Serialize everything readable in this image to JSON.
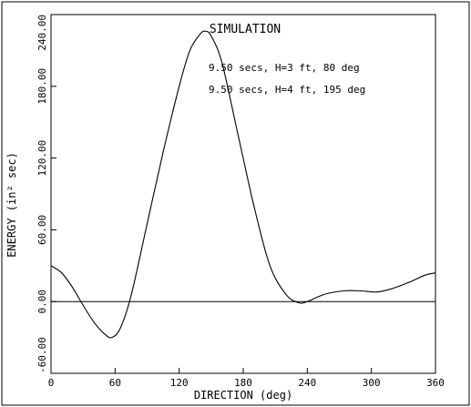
{
  "chart_data": {
    "type": "line",
    "title": "SIMULATION",
    "xlabel": "DIRECTION (deg)",
    "ylabel": "ENERGY (in² sec)",
    "xlim": [
      0,
      360
    ],
    "ylim": [
      -60,
      240
    ],
    "x_ticks": [
      0,
      60,
      120,
      180,
      240,
      300,
      360
    ],
    "x_tick_labels": [
      "0",
      "60",
      "120",
      "180",
      "240",
      "300",
      "360"
    ],
    "y_ticks": [
      -60,
      0,
      60,
      120,
      180,
      240
    ],
    "y_tick_labels": [
      "-60.00",
      "0.00",
      "60.00",
      "120.00",
      "180.00",
      "240.00"
    ],
    "grid": false,
    "annotations": [
      "9.50 secs, H=3 ft,  80 deg",
      "9.50 secs, H=4 ft, 195 deg"
    ],
    "reference_line": {
      "y": 0
    },
    "series": [
      {
        "x": [
          0,
          10,
          20,
          30,
          40,
          50,
          57,
          65,
          75,
          90,
          105,
          120,
          130,
          140,
          145,
          150,
          160,
          175,
          190,
          205,
          220,
          232,
          240,
          250,
          260,
          275,
          290,
          305,
          320,
          335,
          350,
          360
        ],
        "values": [
          30,
          24,
          12,
          -3,
          -17,
          -27,
          -30,
          -22,
          5,
          65,
          125,
          180,
          210,
          224,
          226,
          222,
          200,
          140,
          80,
          30,
          6,
          -1,
          0,
          4,
          7,
          9,
          9,
          8,
          11,
          16,
          22,
          24
        ]
      }
    ]
  }
}
